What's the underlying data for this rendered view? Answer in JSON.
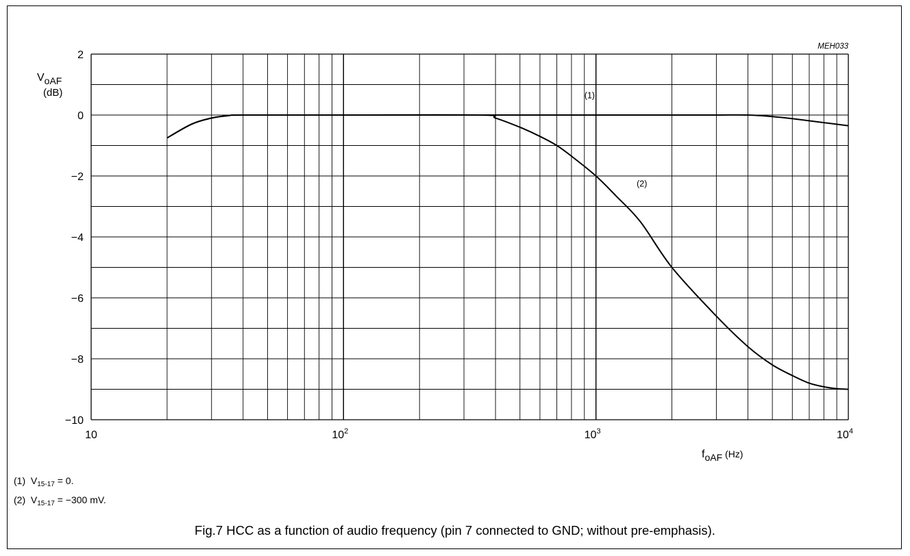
{
  "chart_data": {
    "type": "line",
    "code": "MEH033",
    "x_scale": "log",
    "xlim": [
      10,
      10000
    ],
    "ylim": [
      -10,
      2
    ],
    "y_ticks": [
      2,
      0,
      -2,
      -4,
      -6,
      -8,
      -10
    ],
    "y_tick_labels": [
      "2",
      "0",
      "−2",
      "−4",
      "−6",
      "−8",
      "−10"
    ],
    "x_ticks": [
      10,
      100,
      1000,
      10000
    ],
    "x_tick_labels": [
      {
        "base": "10",
        "exp": ""
      },
      {
        "base": "10",
        "exp": "2"
      },
      {
        "base": "10",
        "exp": "3"
      },
      {
        "base": "10",
        "exp": "4"
      }
    ],
    "ylabel": {
      "main": "V",
      "sub": "oAF",
      "unit": "(dB)"
    },
    "xlabel": {
      "main": "f",
      "sub": "oAF",
      "unit": " (Hz)"
    },
    "grid": true,
    "series": [
      {
        "name": "(1)",
        "x": [
          20,
          25,
          30,
          35,
          40,
          100,
          1000,
          2000,
          3000,
          4000,
          5000,
          6000,
          8000,
          10000
        ],
        "y": [
          -0.75,
          -0.3,
          -0.1,
          -0.02,
          0,
          0,
          0,
          0,
          0,
          0,
          -0.05,
          -0.12,
          -0.25,
          -0.35
        ]
      },
      {
        "name": "(2)",
        "x": [
          20,
          25,
          30,
          35,
          40,
          100,
          350,
          400,
          500,
          600,
          700,
          800,
          1000,
          1200,
          1500,
          2000,
          3000,
          4000,
          5000,
          6000,
          7000,
          8000,
          9000,
          10000
        ],
        "y": [
          -0.75,
          -0.3,
          -0.1,
          -0.02,
          0,
          0,
          0,
          -0.1,
          -0.4,
          -0.7,
          -1.0,
          -1.35,
          -2.0,
          -2.65,
          -3.5,
          -5.0,
          -6.6,
          -7.6,
          -8.2,
          -8.55,
          -8.8,
          -8.92,
          -8.98,
          -9.0
        ]
      }
    ]
  },
  "notes": [
    {
      "num": "(1)",
      "v": "V",
      "sub": "15-17",
      "rest": " = 0."
    },
    {
      "num": "(2)",
      "v": "V",
      "sub": "15-17",
      "rest": " = −300 mV."
    }
  ],
  "caption": "Fig.7  HCC as a function of audio frequency (pin 7 connected to GND; without pre-emphasis)."
}
